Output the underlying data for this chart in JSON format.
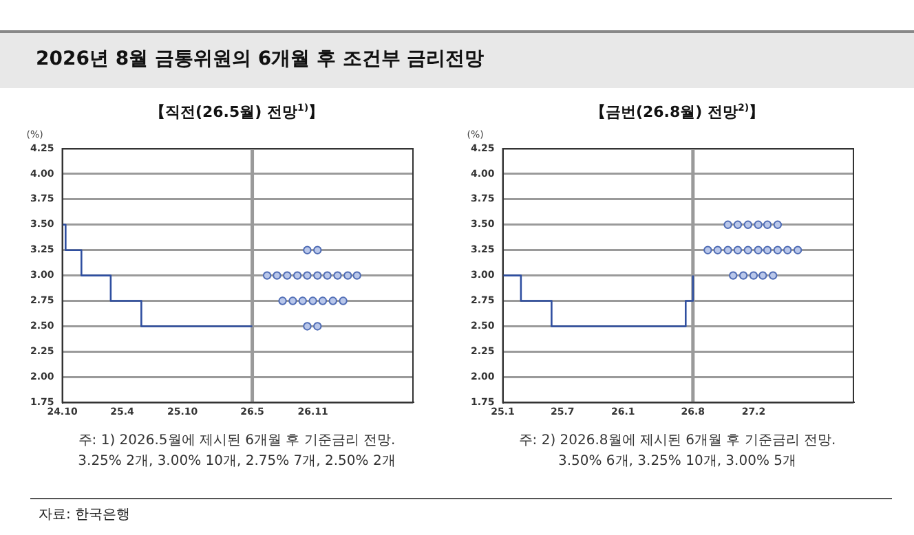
{
  "chart_data": [
    {
      "type": "line",
      "title": "2026년 8월 금통위원의 6개월 후 조건부 금리전망",
      "subtitle": "【직전(26.5월) 전망$^{1)}$】",
      "ylabel": "(%)",
      "xlim": [
        "2024-10-01",
        "2027-09-01"
      ],
      "ylim": [
        1.75,
        4.25
      ],
      "xticks": [
        {
          "value": "2024-10-01",
          "label": "24.10"
        },
        {
          "value": "2025-04-01",
          "label": "25.4"
        },
        {
          "value": "2025-10-01",
          "label": "25.10"
        },
        {
          "value": "2026-05-01",
          "label": "26.5"
        },
        {
          "value": "2026-11-01",
          "label": "26.11"
        }
      ],
      "yticks": [
        1.75,
        {
          "value": 2,
          "label": "2.00"
        },
        2.25,
        {
          "value": 2.5,
          "label": "2.50"
        },
        2.75,
        {
          "value": 3,
          "label": "3.00"
        },
        3.25,
        {
          "value": 3.5,
          "label": "3.50"
        },
        3.75,
        {
          "value": 4,
          "label": "4.00"
        },
        4.25
      ],
      "grid": "y",
      "ref_lines": [
        {
          "axis": "x",
          "value": "2026-05-01",
          "color": "#9a9a9a"
        }
      ],
      "series": [
        {
          "type": "step",
          "color": "#2f4fa0",
          "x": [
            "2024-10-01",
            "2024-10-11",
            "2024-11-28",
            "2025-02-25",
            "2025-05-29",
            "2026-05-01"
          ],
          "values": [
            3.5,
            3.25,
            3.0,
            2.75,
            2.5,
            2.5
          ]
        },
        {
          "type": "scatter",
          "marker": "circle",
          "color": "#4f6cb5",
          "x": [
            "2026-10-15",
            "2026-11-15",
            "2026-06-15",
            "2026-07-15",
            "2026-08-15",
            "2026-09-15",
            "2026-10-15",
            "2026-11-15",
            "2026-12-15",
            "2027-01-15",
            "2027-02-15",
            "2027-03-15",
            "2026-08-01",
            "2026-09-01",
            "2026-10-01",
            "2026-11-01",
            "2026-12-01",
            "2027-01-01",
            "2027-02-01",
            "2026-10-15",
            "2026-11-15"
          ],
          "values": [
            3.25,
            3.25,
            3.0,
            3.0,
            3.0,
            3.0,
            3.0,
            3.0,
            3.0,
            3.0,
            3.0,
            3.0,
            2.75,
            2.75,
            2.75,
            2.75,
            2.75,
            2.75,
            2.75,
            2.5,
            2.5
          ]
        }
      ],
      "annotations": [
        "주: 1) 2026.5월에 제시된 6개월 후 기준금리 전망.",
        "3.25% 2개, 3.00% 10개, 2.75% 7개, 2.50% 2개",
        "자료: 한국은행"
      ]
    },
    {
      "type": "line",
      "subtitle": "【금번(26.8월) 전망$^{2)}$】",
      "ylabel": "(%)",
      "xlim": [
        "2025-01-01",
        "2027-12-01"
      ],
      "ylim": [
        1.75,
        4.25
      ],
      "xticks": [
        {
          "value": "2025-01-01",
          "label": "25.1"
        },
        {
          "value": "2025-07-01",
          "label": "25.7"
        },
        {
          "value": "2026-01-01",
          "label": "26.1"
        },
        {
          "value": "2026-08-01",
          "label": "26.8"
        },
        {
          "value": "2027-02-01",
          "label": "27.2"
        }
      ],
      "yticks": [
        1.75,
        {
          "value": 2,
          "label": "2.00"
        },
        2.25,
        {
          "value": 2.5,
          "label": "2.50"
        },
        2.75,
        {
          "value": 3,
          "label": "3.00"
        },
        3.25,
        {
          "value": 3.5,
          "label": "3.50"
        },
        3.75,
        {
          "value": 4,
          "label": "4.00"
        },
        4.25
      ],
      "grid": "y",
      "ref_lines": [
        {
          "axis": "x",
          "value": "2026-08-01",
          "color": "#9a9a9a"
        }
      ],
      "series": [
        {
          "type": "step",
          "color": "#2f4fa0",
          "x": [
            "2025-01-01",
            "2025-02-25",
            "2025-05-29",
            "2026-07-10",
            "2026-08-01"
          ],
          "values": [
            3.0,
            2.75,
            2.5,
            2.75,
            3.0
          ]
        },
        {
          "type": "scatter",
          "marker": "circle",
          "color": "#4f6cb5",
          "x": [
            "2026-11-15",
            "2026-12-15",
            "2027-01-15",
            "2027-02-15",
            "2027-03-15",
            "2027-04-15",
            "2026-09-15",
            "2026-10-15",
            "2026-11-15",
            "2026-12-15",
            "2027-01-15",
            "2027-02-15",
            "2027-03-15",
            "2027-04-15",
            "2027-05-15",
            "2027-06-15",
            "2026-12-01",
            "2027-01-01",
            "2027-02-01",
            "2027-03-01",
            "2027-04-01"
          ],
          "values": [
            3.5,
            3.5,
            3.5,
            3.5,
            3.5,
            3.5,
            3.25,
            3.25,
            3.25,
            3.25,
            3.25,
            3.25,
            3.25,
            3.25,
            3.25,
            3.25,
            3.0,
            3.0,
            3.0,
            3.0,
            3.0
          ]
        }
      ],
      "annotations": [
        "주: 2) 2026.8월에 제시된 6개월 후 기준금리 전망.",
        "3.50% 6개, 3.25% 10개, 3.00% 5개"
      ]
    }
  ]
}
